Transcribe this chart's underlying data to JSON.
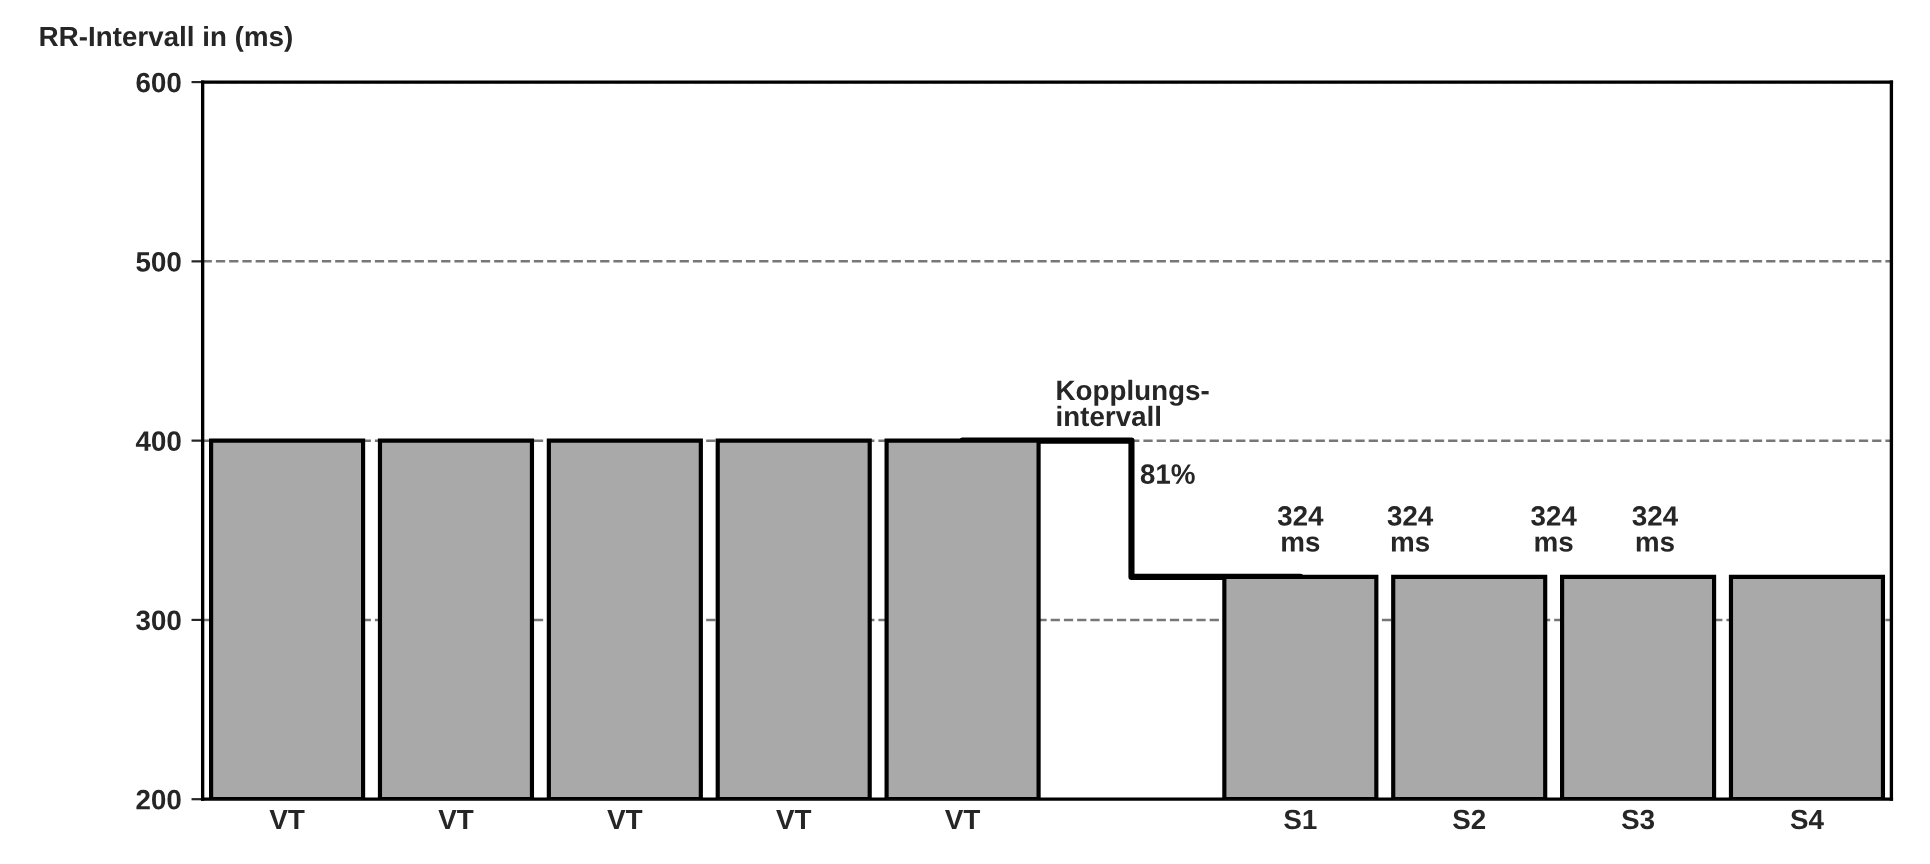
{
  "chart_data": {
    "type": "bar",
    "ylabel": "RR-Intervall in (ms)",
    "categories": [
      "VT",
      "VT",
      "VT",
      "VT",
      "VT",
      null,
      "S1",
      "S2",
      "S3",
      "S4"
    ],
    "series": [
      {
        "color": "#a9a9a9",
        "values": [
          400,
          400,
          400,
          400,
          400,
          null,
          324,
          324,
          324,
          324
        ]
      },
      {
        "type": "step",
        "color": "#000000",
        "values": [
          null,
          null,
          null,
          null,
          400,
          324,
          324,
          null,
          null,
          null
        ]
      }
    ],
    "ylim": [
      200,
      600
    ],
    "yticks": [
      200,
      300,
      400,
      500,
      600
    ],
    "grid": "y",
    "annotations": [
      "Kopplungs-\nintervall",
      "81%",
      "324\nms",
      "324\nms",
      "324\nms",
      "324\nms"
    ]
  }
}
